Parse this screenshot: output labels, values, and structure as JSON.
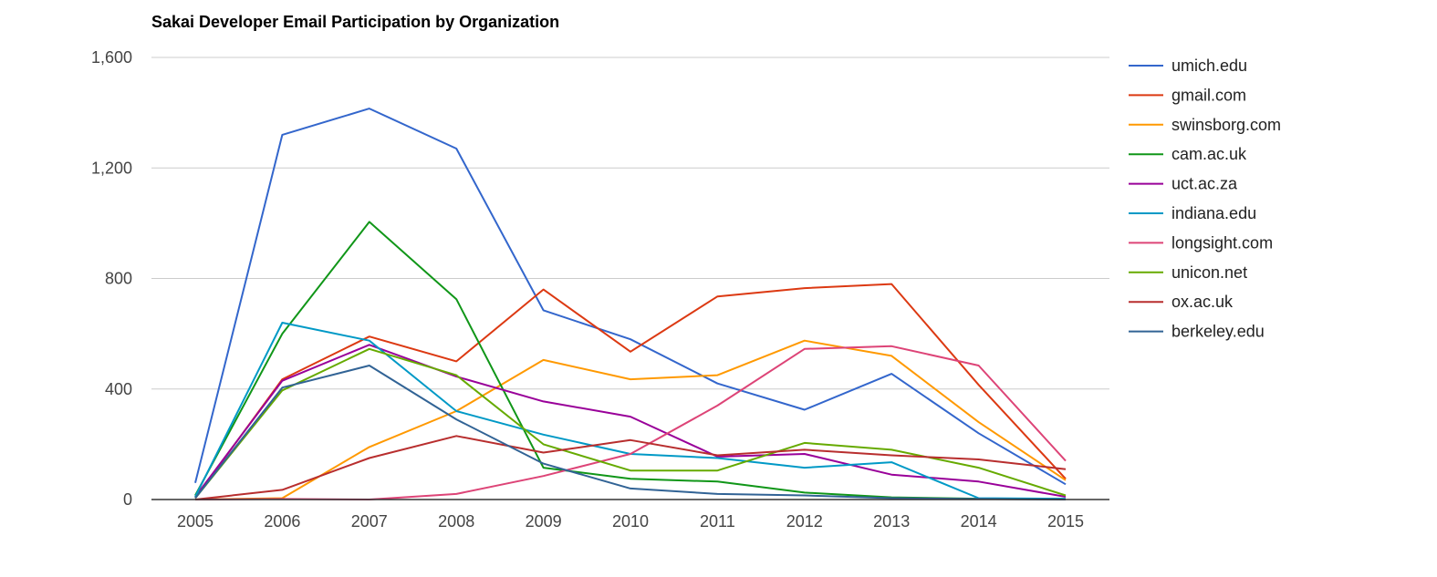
{
  "chart_data": {
    "type": "line",
    "title": "Sakai Developer Email Participation by Organization",
    "xlabel": "",
    "ylabel": "",
    "x": [
      "2005",
      "2006",
      "2007",
      "2008",
      "2009",
      "2010",
      "2011",
      "2012",
      "2013",
      "2014",
      "2015"
    ],
    "ylim": [
      0,
      1600
    ],
    "yticks": [
      0,
      400,
      800,
      1200,
      1600
    ],
    "ytick_labels": [
      "0",
      "400",
      "800",
      "1,200",
      "1,600"
    ],
    "grid": true,
    "legend": "right",
    "series": [
      {
        "name": "umich.edu",
        "color": "#3366cc",
        "values": [
          60,
          1320,
          1415,
          1270,
          685,
          580,
          420,
          325,
          455,
          240,
          55
        ]
      },
      {
        "name": "gmail.com",
        "color": "#dc3912",
        "values": [
          5,
          435,
          590,
          500,
          760,
          535,
          735,
          765,
          780,
          415,
          75
        ]
      },
      {
        "name": "swinsborg.com",
        "color": "#ff9900",
        "values": [
          0,
          5,
          190,
          320,
          505,
          435,
          450,
          575,
          520,
          280,
          70
        ]
      },
      {
        "name": "cam.ac.uk",
        "color": "#109618",
        "values": [
          15,
          600,
          1005,
          725,
          115,
          75,
          65,
          25,
          8,
          3,
          2
        ]
      },
      {
        "name": "uct.ac.za",
        "color": "#990099",
        "values": [
          10,
          430,
          560,
          445,
          355,
          300,
          155,
          165,
          90,
          65,
          10
        ]
      },
      {
        "name": "indiana.edu",
        "color": "#0099c6",
        "values": [
          10,
          640,
          575,
          320,
          235,
          165,
          150,
          115,
          135,
          5,
          3
        ]
      },
      {
        "name": "longsight.com",
        "color": "#dd4477",
        "values": [
          0,
          2,
          0,
          20,
          85,
          165,
          340,
          545,
          555,
          485,
          140
        ]
      },
      {
        "name": "unicon.net",
        "color": "#66aa00",
        "values": [
          5,
          395,
          545,
          450,
          200,
          105,
          105,
          205,
          180,
          115,
          15
        ]
      },
      {
        "name": "ox.ac.uk",
        "color": "#b82e2e",
        "values": [
          0,
          35,
          150,
          230,
          170,
          215,
          160,
          180,
          160,
          145,
          110
        ]
      },
      {
        "name": "berkeley.edu",
        "color": "#316395",
        "values": [
          5,
          405,
          485,
          290,
          130,
          40,
          20,
          15,
          5,
          2,
          0
        ]
      }
    ]
  }
}
